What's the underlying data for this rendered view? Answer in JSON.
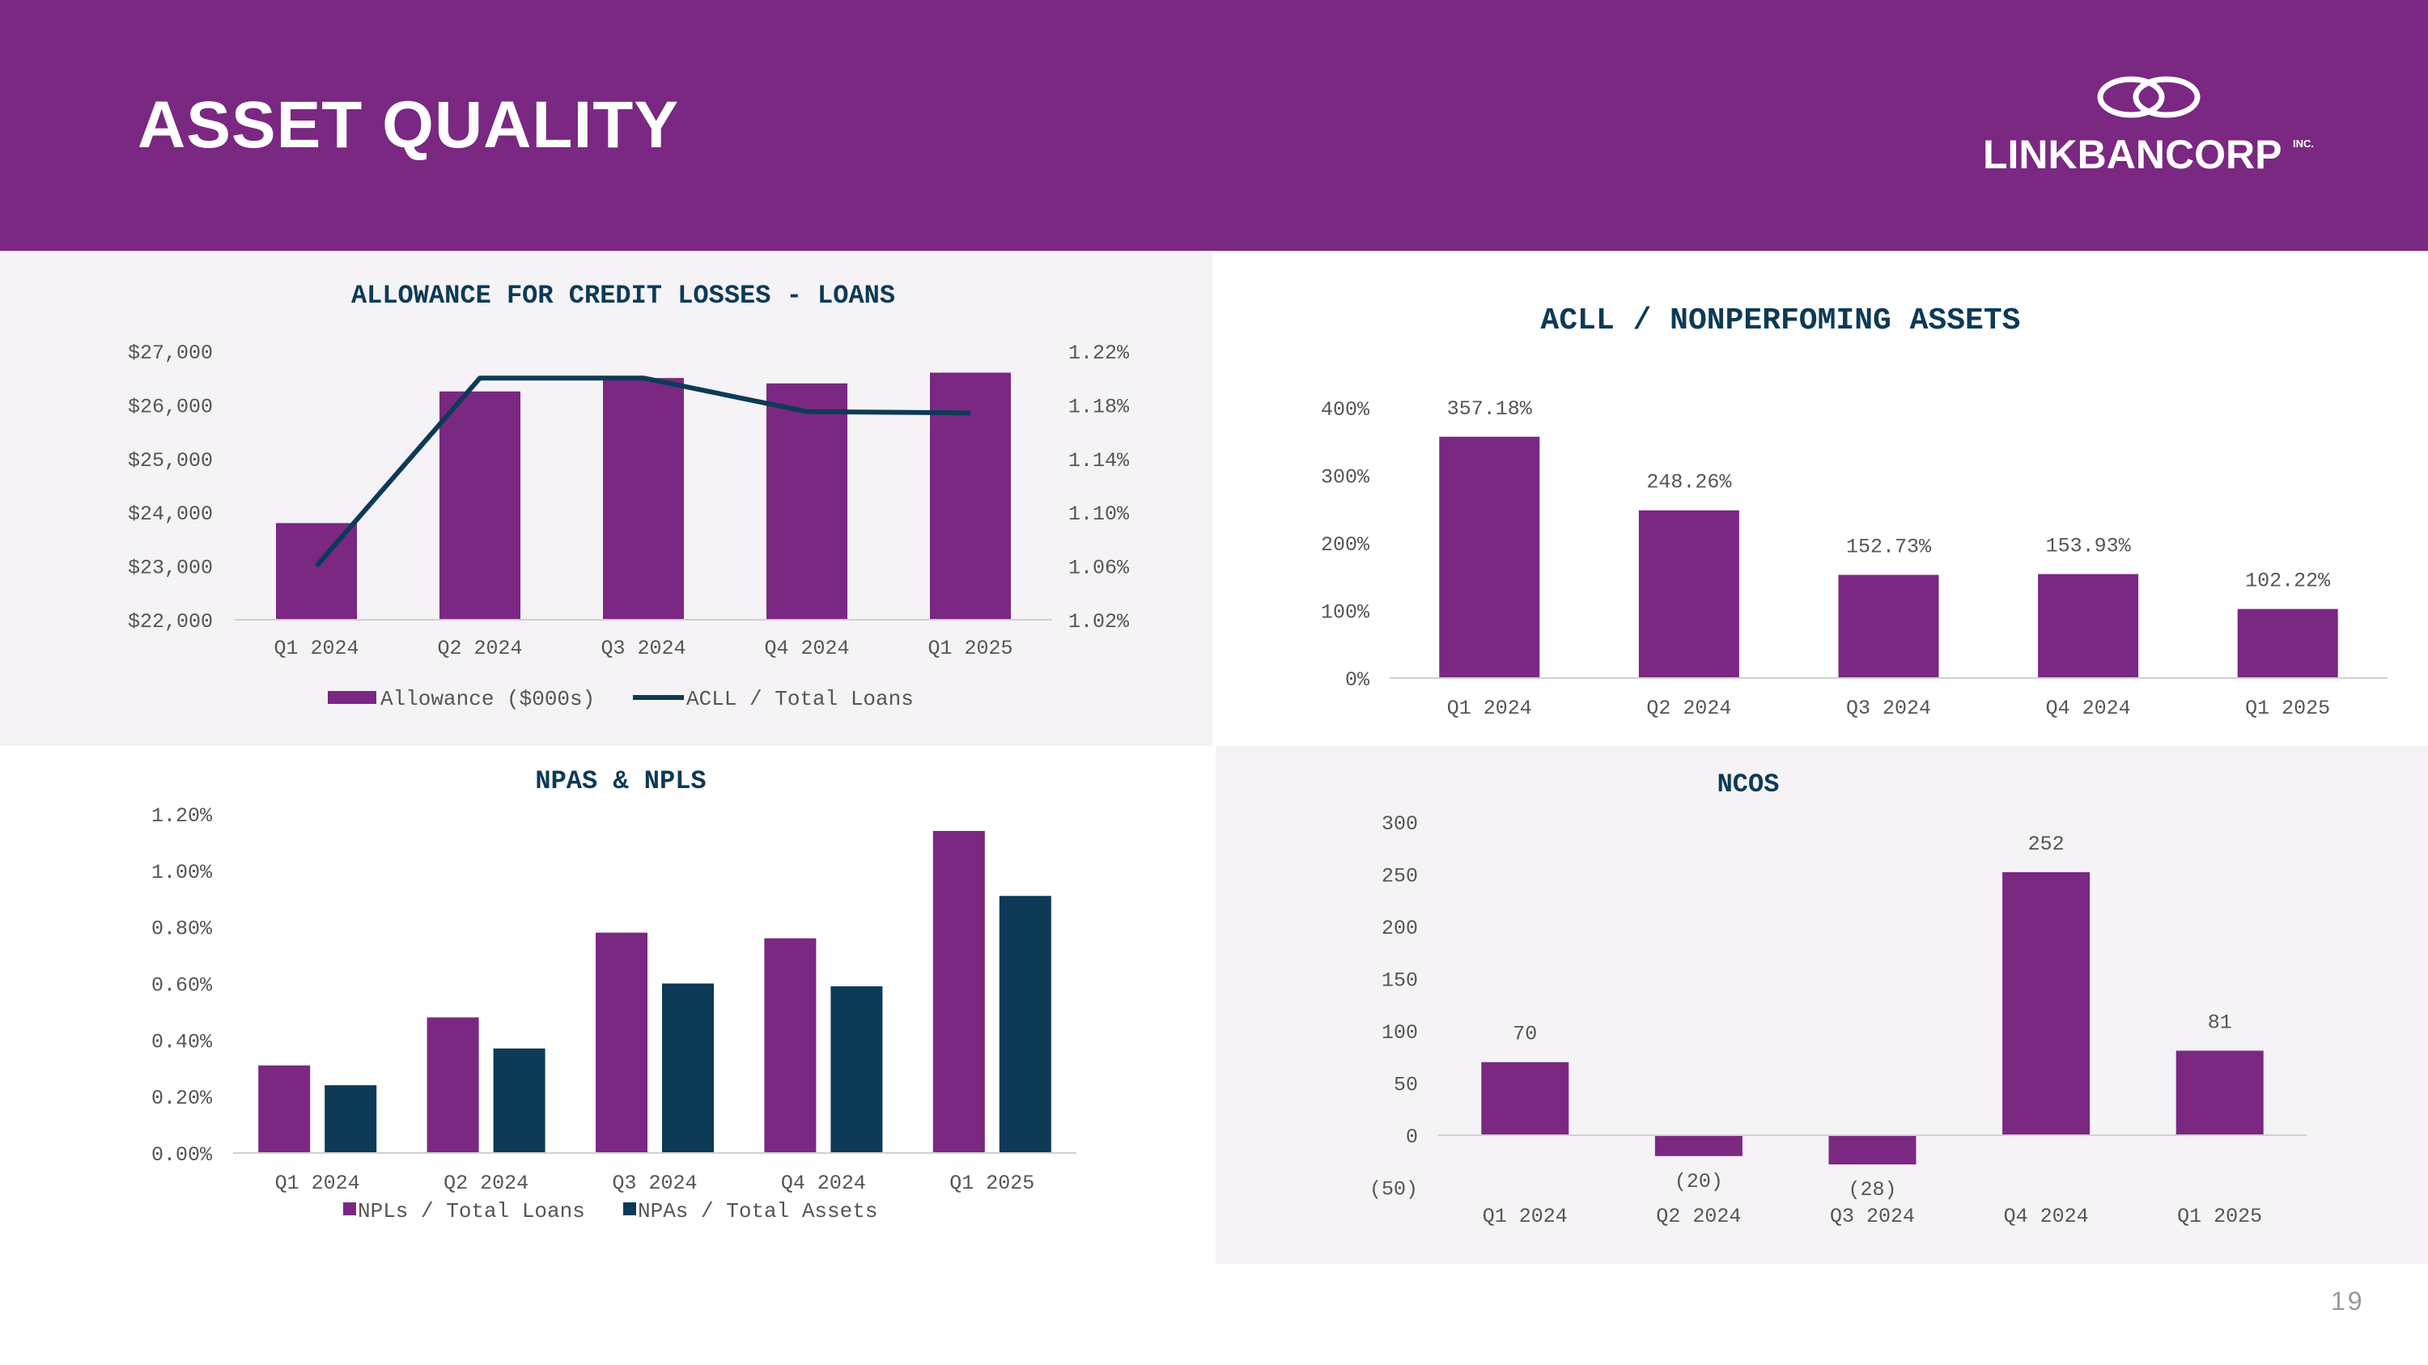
{
  "header": {
    "title": "ASSET QUALITY",
    "logo_text": "LINKBANCORP",
    "logo_suffix": "INC."
  },
  "page_number": "19",
  "colors": {
    "purple": "#7a2882",
    "navy": "#0d3a57",
    "header_bg": "#7a2882"
  },
  "chart_data": [
    {
      "id": "acll",
      "type": "bar",
      "title": "ALLOWANCE FOR CREDIT LOSSES - LOANS",
      "categories": [
        "Q1 2024",
        "Q2 2024",
        "Q3 2024",
        "Q4 2024",
        "Q1 2025"
      ],
      "series": [
        {
          "name": "Allowance ($000s)",
          "type": "bar",
          "axis": "left",
          "values": [
            23800,
            26250,
            26500,
            26400,
            26600
          ]
        },
        {
          "name": "ACLL / Total Loans",
          "type": "line",
          "axis": "right",
          "values": [
            1.06,
            1.2,
            1.2,
            1.175,
            1.174
          ]
        }
      ],
      "y_left": {
        "min": 22000,
        "max": 27000,
        "ticks": [
          "$22,000",
          "$23,000",
          "$24,000",
          "$25,000",
          "$26,000",
          "$27,000"
        ]
      },
      "y_right": {
        "min": 1.02,
        "max": 1.22,
        "ticks": [
          "1.02%",
          "1.06%",
          "1.10%",
          "1.14%",
          "1.18%",
          "1.22%"
        ]
      },
      "legend": [
        "Allowance ($000s)",
        "ACLL / Total Loans"
      ]
    },
    {
      "id": "ratio",
      "type": "bar",
      "title": "ACLL / NONPERFOMING ASSETS",
      "categories": [
        "Q1 2024",
        "Q2 2024",
        "Q3 2024",
        "Q4 2024",
        "Q1 2025"
      ],
      "values": [
        357.18,
        248.26,
        152.73,
        153.93,
        102.22
      ],
      "labels": [
        "357.18%",
        "248.26%",
        "152.73%",
        "153.93%",
        "102.22%"
      ],
      "y": {
        "min": 0,
        "max": 400,
        "ticks": [
          "0%",
          "100%",
          "200%",
          "300%",
          "400%"
        ]
      }
    },
    {
      "id": "npa",
      "type": "bar",
      "title": "NPAS & NPLS",
      "categories": [
        "Q1 2024",
        "Q2 2024",
        "Q3 2024",
        "Q4 2024",
        "Q1 2025"
      ],
      "series": [
        {
          "name": "NPLs / Total Loans",
          "values": [
            0.31,
            0.48,
            0.78,
            0.76,
            1.14
          ]
        },
        {
          "name": "NPAs / Total Assets",
          "values": [
            0.24,
            0.37,
            0.6,
            0.59,
            0.91
          ]
        }
      ],
      "y": {
        "min": 0,
        "max": 1.2,
        "ticks": [
          "0.00%",
          "0.20%",
          "0.40%",
          "0.60%",
          "0.80%",
          "1.00%",
          "1.20%"
        ]
      },
      "legend": [
        "NPLs / Total Loans",
        "NPAs / Total Assets"
      ]
    },
    {
      "id": "nco",
      "type": "bar",
      "title": "NCOS",
      "categories": [
        "Q1 2024",
        "Q2 2024",
        "Q3 2024",
        "Q4 2024",
        "Q1 2025"
      ],
      "values": [
        70,
        -20,
        -28,
        252,
        81
      ],
      "labels": [
        "70",
        "(20)",
        "(28)",
        "252",
        "81"
      ],
      "y": {
        "min": -50,
        "max": 300,
        "ticks": [
          "(50)",
          "0",
          "50",
          "100",
          "150",
          "200",
          "250",
          "300"
        ]
      }
    }
  ]
}
